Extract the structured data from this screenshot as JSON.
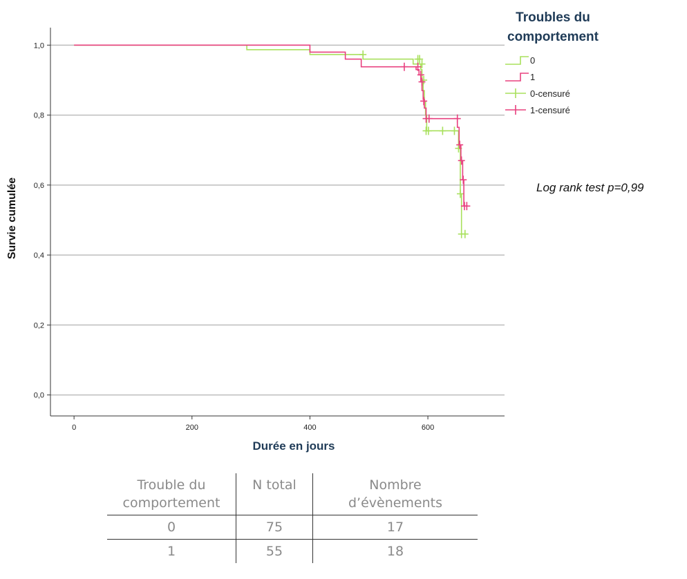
{
  "chart_data": {
    "type": "line",
    "title": "",
    "xlabel": "Durée en jours",
    "ylabel": "Survie cumulée",
    "xlim": [
      -40,
      730
    ],
    "ylim": [
      -0.06,
      1.05
    ],
    "xticks": [
      0,
      200,
      400,
      600
    ],
    "xtick_labels": [
      "0",
      "200",
      "400",
      "600"
    ],
    "yticks": [
      0.0,
      0.2,
      0.4,
      0.6,
      0.8,
      1.0
    ],
    "ytick_labels": [
      "0,0",
      "0,2",
      "0,4",
      "0,6",
      "0,8",
      "1,0"
    ],
    "grid": "horizontal",
    "legend": {
      "placement": "top-right",
      "title": [
        "Troubles du",
        "comportement"
      ],
      "entries": [
        "0",
        "1",
        "0-censuré",
        "1-censuré"
      ]
    },
    "series": [
      {
        "name": "0",
        "color": "#a8e05c",
        "steps": [
          [
            0,
            1.0
          ],
          [
            293,
            0.987
          ],
          [
            400,
            0.973
          ],
          [
            490,
            0.96
          ],
          [
            575,
            0.946
          ],
          [
            588,
            0.93
          ],
          [
            590,
            0.9
          ],
          [
            592,
            0.87
          ],
          [
            594,
            0.84
          ],
          [
            596,
            0.8
          ],
          [
            598,
            0.755
          ],
          [
            652,
            0.705
          ],
          [
            655,
            0.575
          ],
          [
            657,
            0.46
          ],
          [
            665,
            0.46
          ]
        ],
        "censored": [
          [
            490,
            0.973
          ],
          [
            583,
            0.96
          ],
          [
            586,
            0.96
          ],
          [
            590,
            0.946
          ],
          [
            593,
            0.9
          ],
          [
            597,
            0.755
          ],
          [
            601,
            0.755
          ],
          [
            625,
            0.755
          ],
          [
            645,
            0.755
          ],
          [
            652,
            0.705
          ],
          [
            655,
            0.575
          ],
          [
            657,
            0.46
          ],
          [
            663,
            0.46
          ]
        ]
      },
      {
        "name": "1",
        "color": "#e8407f",
        "steps": [
          [
            0,
            1.0
          ],
          [
            400,
            0.98
          ],
          [
            460,
            0.96
          ],
          [
            487,
            0.938
          ],
          [
            580,
            0.93
          ],
          [
            585,
            0.915
          ],
          [
            588,
            0.895
          ],
          [
            590,
            0.87
          ],
          [
            592,
            0.845
          ],
          [
            594,
            0.82
          ],
          [
            597,
            0.79
          ],
          [
            650,
            0.765
          ],
          [
            653,
            0.715
          ],
          [
            656,
            0.67
          ],
          [
            659,
            0.615
          ],
          [
            661,
            0.54
          ],
          [
            667,
            0.54
          ]
        ],
        "censored": [
          [
            560,
            0.938
          ],
          [
            583,
            0.938
          ],
          [
            588,
            0.915
          ],
          [
            590,
            0.895
          ],
          [
            593,
            0.84
          ],
          [
            597,
            0.79
          ],
          [
            602,
            0.79
          ],
          [
            650,
            0.79
          ],
          [
            654,
            0.715
          ],
          [
            657,
            0.67
          ],
          [
            660,
            0.615
          ],
          [
            662,
            0.54
          ],
          [
            666,
            0.54
          ]
        ]
      }
    ]
  },
  "annotation": "Log rank test  p=0,99",
  "table": {
    "headers": [
      [
        "Trouble du",
        "comportement"
      ],
      [
        "N total"
      ],
      [
        "Nombre",
        "d’évènements"
      ]
    ],
    "rows": [
      [
        "0",
        "75",
        "17"
      ],
      [
        "1",
        "55",
        "18"
      ]
    ]
  }
}
